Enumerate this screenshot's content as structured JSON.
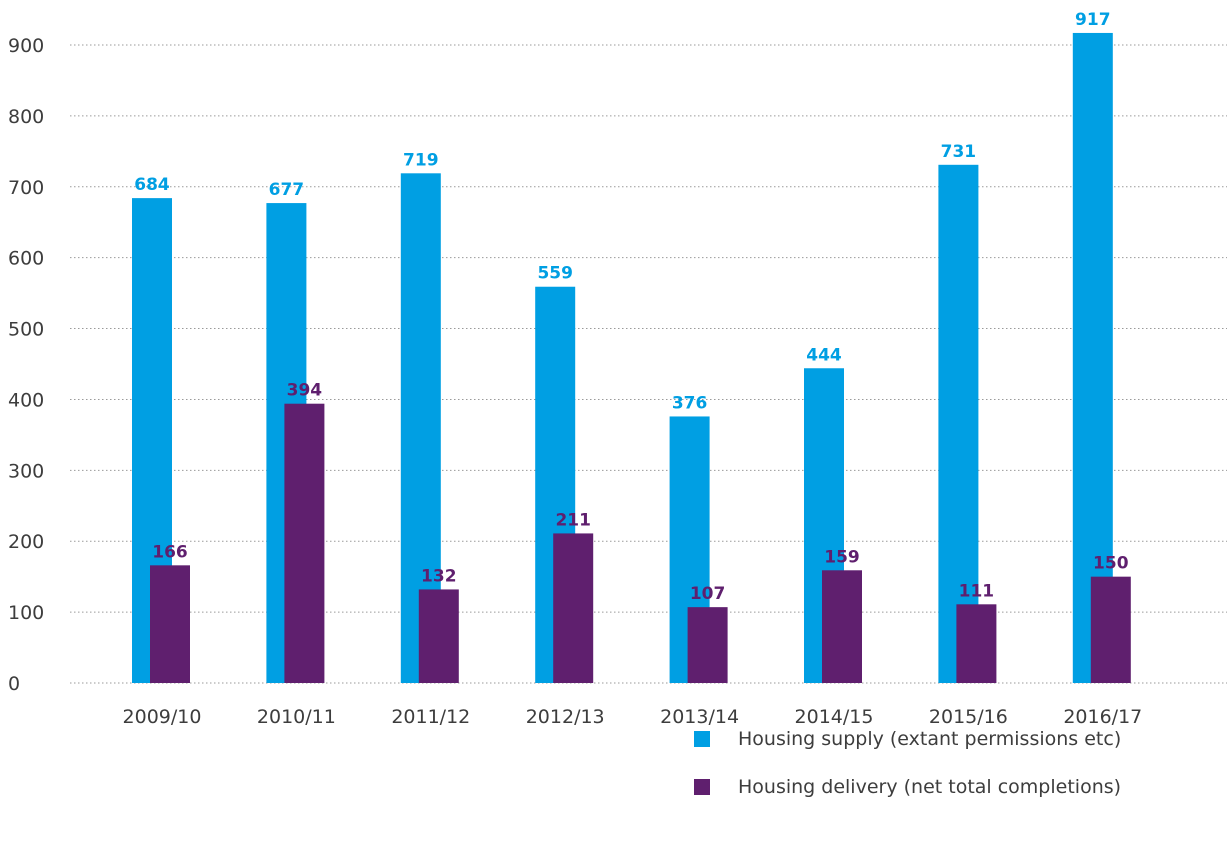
{
  "chart_data": {
    "type": "bar",
    "categories": [
      "2009/10",
      "2010/11",
      "2011/12",
      "2012/13",
      "2013/14",
      "2014/15",
      "2015/16",
      "2016/17"
    ],
    "series": [
      {
        "name": "Housing supply (extant permissions etc)",
        "color": "#009fe3",
        "values": [
          684,
          677,
          719,
          559,
          376,
          444,
          731,
          917
        ]
      },
      {
        "name": "Housing delivery (net total completions)",
        "color": "#5f1f6e",
        "values": [
          166,
          394,
          132,
          211,
          107,
          159,
          111,
          150
        ]
      }
    ],
    "title": "",
    "xlabel": "",
    "ylabel": "",
    "ylim": [
      0,
      900
    ],
    "yticks": [
      0,
      100,
      200,
      300,
      400,
      500,
      600,
      700,
      800,
      900
    ],
    "grid": true,
    "grid_style": "dotted",
    "legend_position": "bottom-right"
  }
}
